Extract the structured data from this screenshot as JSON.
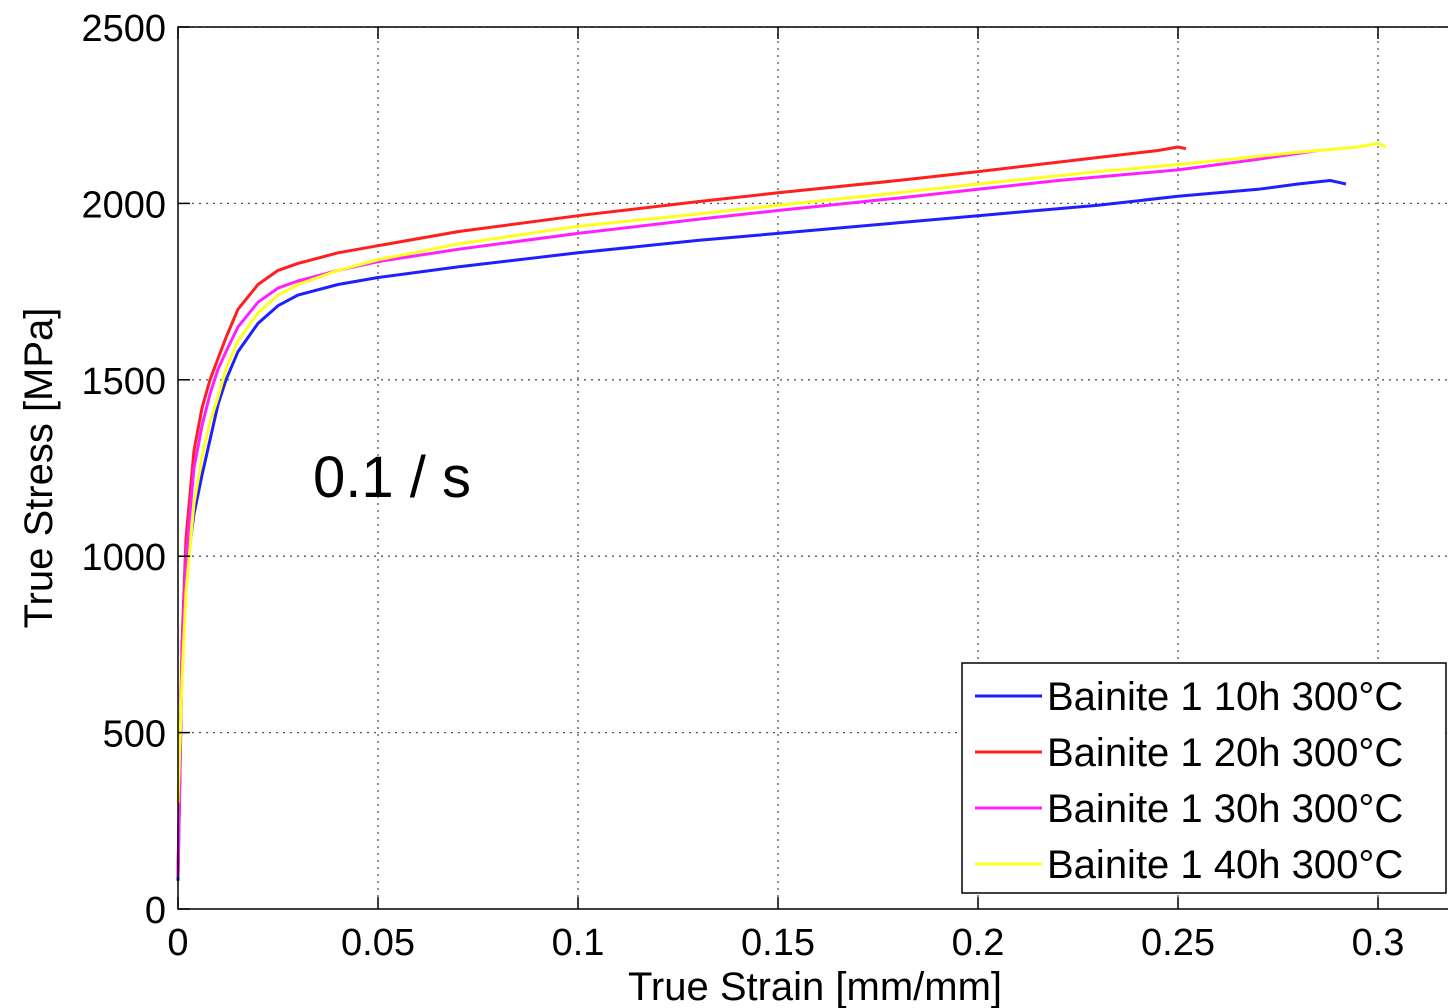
{
  "chart_data": {
    "type": "line",
    "title": "",
    "xlabel": "True Strain [mm/mm]",
    "ylabel": "True Stress [MPa]",
    "annotation": "0.1 / s",
    "xlim": [
      0,
      0.3
    ],
    "ylim": [
      0,
      2500
    ],
    "xticks": [
      0,
      0.05,
      0.1,
      0.15,
      0.2,
      0.25,
      0.3
    ],
    "xtick_labels": [
      "0",
      "0.05",
      "0.1",
      "0.15",
      "0.2",
      "0.25",
      "0.3"
    ],
    "yticks": [
      0,
      500,
      1000,
      1500,
      2000,
      2500
    ],
    "ytick_labels": [
      "0",
      "500",
      "1000",
      "1500",
      "2000",
      "2500"
    ],
    "grid": true,
    "legend_position": "bottom-right",
    "series": [
      {
        "name": "Bainite 1 10h 300°C",
        "color": "#1f1fff",
        "x": [
          0,
          0.001,
          0.002,
          0.004,
          0.006,
          0.008,
          0.01,
          0.012,
          0.015,
          0.02,
          0.025,
          0.03,
          0.04,
          0.05,
          0.07,
          0.1,
          0.13,
          0.15,
          0.18,
          0.2,
          0.23,
          0.25,
          0.27,
          0.28,
          0.288,
          0.29,
          0.292
        ],
        "values": [
          80,
          700,
          950,
          1120,
          1230,
          1330,
          1430,
          1500,
          1580,
          1660,
          1710,
          1740,
          1770,
          1790,
          1820,
          1860,
          1895,
          1915,
          1945,
          1965,
          1995,
          2020,
          2040,
          2055,
          2065,
          2060,
          2055
        ]
      },
      {
        "name": "Bainite 1 20h 300°C",
        "color": "#ff1f1f",
        "x": [
          0,
          0.001,
          0.002,
          0.004,
          0.006,
          0.008,
          0.01,
          0.012,
          0.015,
          0.02,
          0.025,
          0.03,
          0.04,
          0.05,
          0.07,
          0.1,
          0.13,
          0.15,
          0.18,
          0.2,
          0.23,
          0.245,
          0.25,
          0.252
        ],
        "values": [
          100,
          750,
          1050,
          1300,
          1420,
          1500,
          1560,
          1620,
          1700,
          1770,
          1810,
          1830,
          1860,
          1880,
          1920,
          1965,
          2005,
          2030,
          2065,
          2090,
          2130,
          2150,
          2160,
          2155
        ]
      },
      {
        "name": "Bainite 1 30h 300°C",
        "color": "#ff1fff",
        "x": [
          0,
          0.001,
          0.002,
          0.004,
          0.006,
          0.008,
          0.01,
          0.012,
          0.015,
          0.02,
          0.025,
          0.03,
          0.04,
          0.05,
          0.07,
          0.1,
          0.13,
          0.15,
          0.18,
          0.2,
          0.22,
          0.25,
          0.27,
          0.285
        ],
        "values": [
          90,
          720,
          1000,
          1250,
          1370,
          1460,
          1530,
          1580,
          1650,
          1720,
          1760,
          1780,
          1810,
          1835,
          1870,
          1915,
          1955,
          1980,
          2015,
          2040,
          2065,
          2095,
          2125,
          2150
        ]
      },
      {
        "name": "Bainite 1 40h 300°C",
        "color": "#ffff1f",
        "x": [
          0,
          0.001,
          0.002,
          0.004,
          0.006,
          0.008,
          0.01,
          0.012,
          0.015,
          0.02,
          0.025,
          0.03,
          0.04,
          0.05,
          0.07,
          0.1,
          0.13,
          0.15,
          0.18,
          0.2,
          0.23,
          0.25,
          0.28,
          0.295,
          0.3,
          0.302
        ],
        "values": [
          300,
          650,
          900,
          1150,
          1280,
          1380,
          1450,
          1530,
          1610,
          1690,
          1740,
          1770,
          1810,
          1840,
          1885,
          1935,
          1970,
          1995,
          2030,
          2055,
          2090,
          2110,
          2145,
          2160,
          2170,
          2160
        ]
      }
    ]
  }
}
